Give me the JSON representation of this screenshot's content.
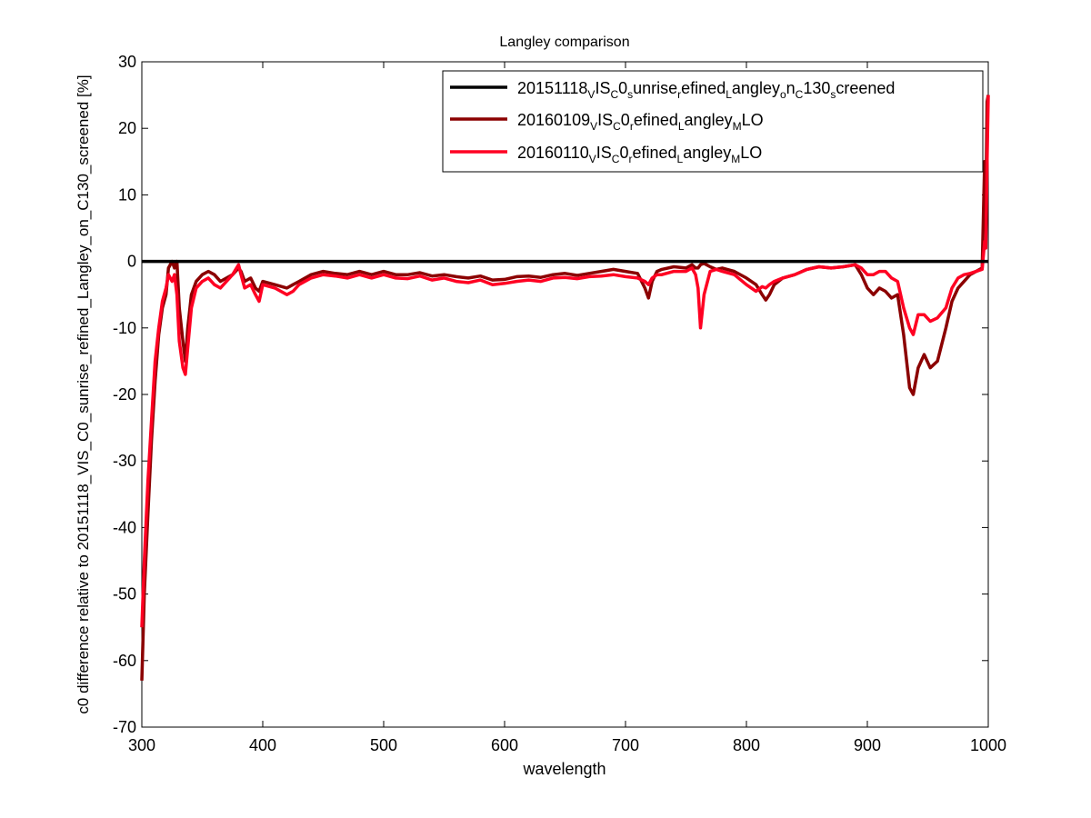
{
  "chart_data": {
    "type": "line",
    "title": "Langley comparison",
    "xlabel": "wavelength",
    "ylabel": "c0 difference relative to 20151118_VIS_C0_sunrise_refined_Langley_on_C130_screened [%]",
    "xlim": [
      300,
      1000
    ],
    "ylim": [
      -70,
      30
    ],
    "xticks": [
      300,
      400,
      500,
      600,
      700,
      800,
      900,
      1000
    ],
    "yticks": [
      30,
      20,
      10,
      0,
      -10,
      -20,
      -30,
      -40,
      -50,
      -60,
      -70
    ],
    "grid": false,
    "legend_position": "top-right",
    "series": [
      {
        "name": "20151118_VIS_C0_sunrise_refined_Langley_on_C130_screened",
        "color": "#000000",
        "x": [
          300,
          1000
        ],
        "y": [
          0,
          0
        ]
      },
      {
        "name": "20160109_VIS_C0_refined_Langley_MLO",
        "color": "#8b0000",
        "x": [
          300,
          302,
          305,
          308,
          311,
          314,
          317,
          320,
          322,
          325,
          327,
          329,
          331,
          334,
          336,
          338,
          341,
          345,
          350,
          355,
          360,
          365,
          370,
          375,
          380,
          382,
          385,
          390,
          394,
          397,
          400,
          410,
          420,
          425,
          430,
          440,
          450,
          460,
          470,
          480,
          490,
          500,
          510,
          520,
          530,
          540,
          550,
          560,
          570,
          580,
          590,
          600,
          610,
          620,
          630,
          640,
          650,
          660,
          670,
          680,
          690,
          700,
          710,
          716,
          719,
          722,
          726,
          730,
          740,
          750,
          755,
          758,
          760,
          762,
          765,
          770,
          775,
          780,
          790,
          800,
          808,
          813,
          816,
          819,
          823,
          830,
          840,
          850,
          860,
          870,
          880,
          890,
          895,
          900,
          905,
          910,
          915,
          920,
          925,
          930,
          935,
          938,
          942,
          947,
          952,
          958,
          965,
          970,
          975,
          980,
          985,
          990,
          995,
          997,
          998,
          999,
          1000
        ],
        "y": [
          -63,
          -50,
          -38,
          -27,
          -18,
          -11,
          -7,
          -5,
          -1,
          0,
          -1,
          0,
          -7,
          -12,
          -15,
          -10,
          -5,
          -3,
          -2,
          -1.5,
          -2,
          -3,
          -2.5,
          -2,
          -1,
          -1.5,
          -3,
          -2.5,
          -4,
          -4.5,
          -3,
          -3.5,
          -4,
          -3.5,
          -3,
          -2,
          -1.5,
          -1.8,
          -2,
          -1.5,
          -2,
          -1.5,
          -2,
          -2,
          -1.7,
          -2.2,
          -2,
          -2.3,
          -2.5,
          -2.2,
          -2.8,
          -2.7,
          -2.3,
          -2.2,
          -2.4,
          -2,
          -1.8,
          -2.1,
          -1.8,
          -1.5,
          -1.2,
          -1.5,
          -1.8,
          -4,
          -5.5,
          -3,
          -1.5,
          -1.2,
          -0.8,
          -1,
          -0.5,
          -1,
          -1,
          -0.5,
          -0.3,
          -0.8,
          -1.2,
          -1,
          -1.5,
          -2.5,
          -3.5,
          -5,
          -5.8,
          -5,
          -3.5,
          -2.5,
          -2,
          -1.2,
          -0.8,
          -1,
          -0.8,
          -0.5,
          -2,
          -4,
          -5,
          -4,
          -4.5,
          -5.5,
          -5,
          -11,
          -19,
          -20,
          -16,
          -14,
          -16,
          -15,
          -10,
          -6,
          -4,
          -3,
          -2,
          -1.5,
          -1,
          15,
          8,
          24,
          25
        ]
      },
      {
        "name": "20160110_VIS_C0_refined_Langley_MLO",
        "color": "#ff0022",
        "x": [
          300,
          302,
          305,
          308,
          311,
          314,
          317,
          320,
          322,
          325,
          327,
          329,
          331,
          334,
          336,
          338,
          341,
          345,
          350,
          355,
          360,
          365,
          370,
          375,
          380,
          382,
          385,
          390,
          394,
          397,
          400,
          410,
          420,
          425,
          430,
          440,
          450,
          460,
          470,
          480,
          490,
          500,
          510,
          520,
          530,
          540,
          550,
          560,
          570,
          580,
          590,
          600,
          610,
          620,
          630,
          640,
          650,
          660,
          670,
          680,
          690,
          700,
          710,
          716,
          719,
          722,
          726,
          730,
          740,
          750,
          755,
          758,
          760,
          762,
          765,
          770,
          775,
          780,
          790,
          800,
          808,
          813,
          816,
          819,
          823,
          830,
          840,
          850,
          860,
          870,
          880,
          890,
          895,
          900,
          905,
          910,
          915,
          920,
          925,
          930,
          935,
          938,
          942,
          947,
          952,
          958,
          965,
          970,
          975,
          980,
          985,
          990,
          995,
          997,
          998,
          999,
          1000
        ],
        "y": [
          -55,
          -45,
          -33,
          -24,
          -15,
          -10,
          -6,
          -4,
          -2,
          -3,
          -2,
          -5,
          -12,
          -16,
          -17,
          -13,
          -7,
          -4,
          -3,
          -2.5,
          -3.5,
          -4,
          -3,
          -2,
          -0.5,
          -2,
          -4,
          -3.5,
          -5,
          -6,
          -3.5,
          -4,
          -5,
          -4.5,
          -3.5,
          -2.5,
          -2,
          -2.2,
          -2.5,
          -2,
          -2.5,
          -2,
          -2.5,
          -2.6,
          -2.2,
          -2.8,
          -2.5,
          -3,
          -3.2,
          -2.8,
          -3.5,
          -3.3,
          -3,
          -2.8,
          -3,
          -2.5,
          -2.4,
          -2.6,
          -2.3,
          -2.2,
          -2,
          -2.3,
          -2.5,
          -3,
          -3.5,
          -2.5,
          -2,
          -2,
          -1.5,
          -1.5,
          -1,
          -2,
          -4,
          -10,
          -5,
          -1.5,
          -1.2,
          -1.5,
          -2,
          -3.5,
          -4.5,
          -3.8,
          -4,
          -3.5,
          -3,
          -2.5,
          -2,
          -1.2,
          -0.8,
          -1,
          -0.8,
          -0.5,
          -1,
          -2,
          -2,
          -1.5,
          -1.5,
          -2.5,
          -3,
          -7,
          -10,
          -11,
          -8,
          -8,
          -9,
          -8.5,
          -7,
          -4,
          -2.5,
          -2,
          -1.8,
          -1.5,
          -1.2,
          3,
          2,
          15,
          25
        ]
      }
    ]
  }
}
